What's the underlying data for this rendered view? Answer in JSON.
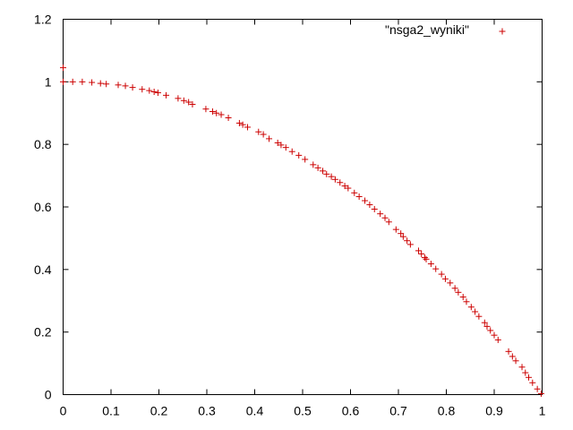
{
  "chart_data": {
    "type": "scatter",
    "title": "",
    "xlabel": "",
    "ylabel": "",
    "xlim": [
      0,
      1
    ],
    "ylim": [
      0,
      1.2
    ],
    "xticks": [
      0,
      0.1,
      0.2,
      0.3,
      0.4,
      0.5,
      0.6,
      0.7,
      0.8,
      0.9,
      1
    ],
    "yticks": [
      0,
      0.2,
      0.4,
      0.6,
      0.8,
      1,
      1.2
    ],
    "grid": false,
    "legend_position": "top-right",
    "marker": "+",
    "series": [
      {
        "name": "\"nsga2_wyniki\"",
        "color": "#cc0000",
        "x": [
          0.0,
          0.0,
          0.02,
          0.04,
          0.06,
          0.078,
          0.09,
          0.115,
          0.13,
          0.145,
          0.165,
          0.18,
          0.19,
          0.198,
          0.215,
          0.24,
          0.252,
          0.262,
          0.27,
          0.298,
          0.312,
          0.32,
          0.33,
          0.345,
          0.368,
          0.375,
          0.385,
          0.408,
          0.418,
          0.43,
          0.448,
          0.455,
          0.465,
          0.478,
          0.492,
          0.505,
          0.522,
          0.532,
          0.542,
          0.55,
          0.56,
          0.568,
          0.578,
          0.588,
          0.595,
          0.608,
          0.618,
          0.63,
          0.64,
          0.65,
          0.662,
          0.672,
          0.68,
          0.695,
          0.705,
          0.71,
          0.718,
          0.725,
          0.742,
          0.748,
          0.755,
          0.758,
          0.768,
          0.778,
          0.79,
          0.798,
          0.808,
          0.818,
          0.825,
          0.835,
          0.842,
          0.852,
          0.86,
          0.868,
          0.88,
          0.885,
          0.892,
          0.9,
          0.908,
          0.93,
          0.938,
          0.945,
          0.958,
          0.965,
          0.972,
          0.98,
          0.99,
          0.998
        ],
        "y": [
          1.045,
          1.0,
          1.0,
          1.0,
          0.998,
          0.995,
          0.993,
          0.99,
          0.987,
          0.982,
          0.976,
          0.972,
          0.968,
          0.965,
          0.957,
          0.947,
          0.94,
          0.935,
          0.928,
          0.913,
          0.905,
          0.9,
          0.895,
          0.885,
          0.868,
          0.863,
          0.855,
          0.84,
          0.832,
          0.818,
          0.805,
          0.798,
          0.79,
          0.777,
          0.765,
          0.752,
          0.735,
          0.725,
          0.715,
          0.705,
          0.697,
          0.688,
          0.678,
          0.667,
          0.66,
          0.645,
          0.633,
          0.62,
          0.607,
          0.593,
          0.578,
          0.565,
          0.552,
          0.528,
          0.515,
          0.505,
          0.492,
          0.48,
          0.46,
          0.45,
          0.438,
          0.433,
          0.418,
          0.402,
          0.385,
          0.37,
          0.357,
          0.34,
          0.327,
          0.312,
          0.297,
          0.28,
          0.265,
          0.25,
          0.23,
          0.218,
          0.205,
          0.19,
          0.175,
          0.138,
          0.122,
          0.108,
          0.088,
          0.07,
          0.055,
          0.038,
          0.018,
          0.003
        ]
      }
    ]
  }
}
